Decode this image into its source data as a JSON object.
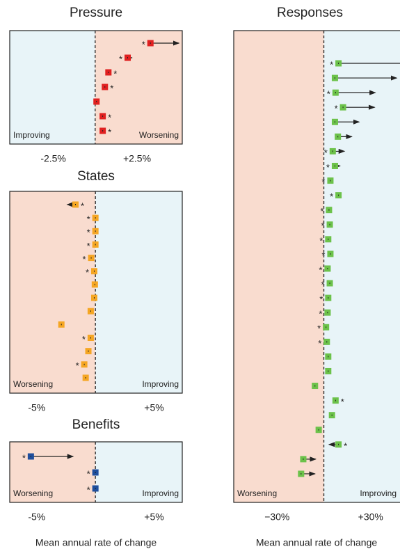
{
  "chart_data": [
    {
      "type": "dot",
      "title": "Pressure",
      "xlim": [
        -5.1,
        5.2
      ],
      "xticks": [
        {
          "value": -2.5,
          "label": "-2.5%"
        },
        {
          "value": 2.5,
          "label": "+2.5%"
        }
      ],
      "left_label": "Improving",
      "right_label": "Worsening",
      "left_color": "#e8f4f8",
      "right_color": "#f9dccf",
      "color": "#e02020",
      "values": [
        3.3,
        1.94,
        0.79,
        0.58,
        0.08,
        0.45,
        0.45
      ],
      "arrow_to": [
        5.0,
        2.19,
        null,
        null,
        null,
        null,
        null
      ],
      "stars": [
        "*",
        "*",
        "*",
        "*",
        null,
        "*",
        "*"
      ],
      "star_side": [
        "left",
        "left",
        "right",
        "right",
        null,
        "right",
        "right"
      ]
    },
    {
      "type": "dot",
      "title": "States",
      "xlim": [
        -7.3,
        7.4
      ],
      "xticks": [
        {
          "value": -5,
          "label": "-5%"
        },
        {
          "value": 5,
          "label": "+5%"
        }
      ],
      "left_label": "Worsening",
      "right_label": "Improving",
      "left_color": "#f9dccf",
      "right_color": "#e8f4f8",
      "color": "#f5a623",
      "values": [
        -1.7,
        0,
        0,
        0,
        -0.36,
        -0.1,
        -0.05,
        -0.1,
        -0.4,
        -2.9,
        -0.4,
        -0.6,
        -0.95,
        -0.83
      ],
      "arrow_to": [
        -2.4,
        null,
        null,
        null,
        null,
        null,
        null,
        null,
        null,
        null,
        null,
        null,
        null,
        null
      ],
      "stars": [
        "*",
        "*",
        "*",
        "*",
        "*",
        "*",
        null,
        null,
        null,
        null,
        "*",
        null,
        "*",
        null
      ],
      "star_side": [
        "right",
        "left",
        "left",
        "left",
        "left",
        "left",
        null,
        null,
        null,
        null,
        "left",
        null,
        "left",
        null
      ]
    },
    {
      "type": "dot",
      "title": "Benefits",
      "xlim": [
        -7.3,
        7.4
      ],
      "xticks": [
        {
          "value": -5,
          "label": "-5%"
        },
        {
          "value": 5,
          "label": "+5%"
        }
      ],
      "x_label": "Mean annual rate of change",
      "left_label": "Worsening",
      "right_label": "Improving",
      "left_color": "#f9dccf",
      "right_color": "#e8f4f8",
      "color": "#1f4e9c",
      "values": [
        -5.5,
        0,
        0
      ],
      "arrow_to": [
        -1.9,
        null,
        null
      ],
      "stars": [
        "*",
        "*",
        "*"
      ],
      "star_side": [
        "left",
        "left",
        "left"
      ]
    },
    {
      "type": "dot",
      "title": "Responses",
      "xlim": [
        -57.8,
        60
      ],
      "xticks": [
        {
          "value": -30,
          "label": "−30%"
        },
        {
          "value": 30,
          "label": "+30%"
        }
      ],
      "x_label": "Mean annual rate of change",
      "left_label": "Worsening",
      "right_label": "Improving",
      "left_color": "#f9dccf",
      "right_color": "#e8f4f8",
      "color": "#6cc24a",
      "values": [
        9.4,
        7.1,
        7.5,
        12.3,
        7.1,
        9.0,
        5.7,
        7.1,
        4.2,
        9.4,
        3.3,
        3.8,
        2.8,
        4.2,
        2.4,
        3.8,
        2.8,
        2.4,
        1.4,
        1.9,
        2.8,
        2.8,
        -5.7,
        7.5,
        5.2,
        -3.3,
        9.4,
        -13.2,
        -14.6
      ],
      "arrow_to": [
        60,
        46.7,
        33,
        32.5,
        22.6,
        17.9,
        13.2,
        10.4,
        null,
        null,
        null,
        null,
        null,
        null,
        null,
        null,
        null,
        null,
        null,
        null,
        null,
        null,
        null,
        null,
        null,
        null,
        3.3,
        -5.2,
        -5.7
      ],
      "stars": [
        "*",
        null,
        "*",
        "*",
        null,
        null,
        "*",
        "*",
        "*",
        "*",
        "*",
        "*",
        "*",
        "*",
        "*",
        "*",
        "*",
        "*",
        "*",
        "*",
        null,
        null,
        null,
        "*",
        null,
        null,
        "*",
        null,
        null
      ],
      "star_side": [
        "left",
        null,
        "left",
        "left",
        null,
        null,
        "left",
        "left",
        "left",
        "left",
        "left",
        "left",
        "left",
        "left",
        "left",
        "left",
        "left",
        "left",
        "left",
        "left",
        null,
        null,
        null,
        "right",
        null,
        null,
        "right",
        null,
        null
      ]
    }
  ]
}
